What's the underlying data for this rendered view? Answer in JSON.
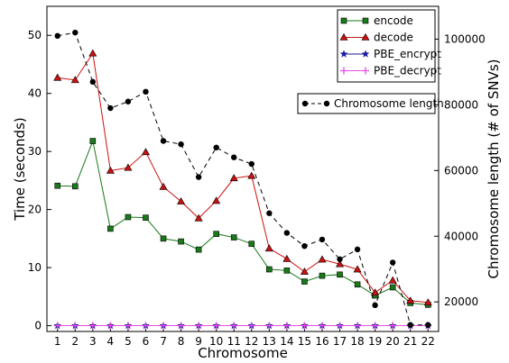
{
  "chart_data": {
    "type": "line",
    "title": "",
    "xlabel": "Chromosome",
    "ylabel": "Time (seconds)",
    "y2label": "Chromosome length (# of SNVs)",
    "categories": [
      "1",
      "2",
      "3",
      "4",
      "5",
      "6",
      "7",
      "8",
      "9",
      "10",
      "11",
      "12",
      "13",
      "14",
      "15",
      "16",
      "17",
      "18",
      "19",
      "20",
      "21",
      "22"
    ],
    "xlim": [
      0.4,
      22.6
    ],
    "ylim": [
      -1,
      55
    ],
    "y2lim": [
      11000,
      110000
    ],
    "yticks": [
      0,
      10,
      20,
      30,
      40,
      50
    ],
    "y2ticks": [
      20000,
      40000,
      60000,
      80000,
      100000
    ],
    "grid": false,
    "series": [
      {
        "name": "encode",
        "axis": "left",
        "color": "#1a7a1a",
        "marker": "square",
        "linestyle": "solid",
        "values": [
          24.1,
          24.0,
          31.8,
          16.7,
          18.7,
          18.6,
          15.0,
          14.5,
          13.1,
          15.8,
          15.2,
          14.1,
          9.7,
          9.5,
          7.6,
          8.6,
          8.8,
          7.1,
          5.2,
          6.6,
          3.9,
          3.6
        ]
      },
      {
        "name": "decode",
        "axis": "left",
        "color": "#cc1111",
        "marker": "triangle",
        "linestyle": "solid",
        "values": [
          42.7,
          42.3,
          46.9,
          26.7,
          27.2,
          29.9,
          23.9,
          21.4,
          18.5,
          21.5,
          25.4,
          25.8,
          13.3,
          11.5,
          9.3,
          11.4,
          10.6,
          9.7,
          5.7,
          7.8,
          4.3,
          4.0
        ]
      },
      {
        "name": "PBE_encrypt",
        "axis": "left",
        "color": "#1a1a9e",
        "marker": "star",
        "linestyle": "solid",
        "values": [
          0,
          0,
          0,
          0,
          0,
          0,
          0,
          0,
          0,
          0,
          0,
          0,
          0,
          0,
          0,
          0,
          0,
          0,
          0,
          0,
          0,
          0
        ]
      },
      {
        "name": "PBE_decrypt",
        "axis": "left",
        "color": "#e64de6",
        "marker": "plus",
        "linestyle": "solid",
        "values": [
          0,
          0,
          0,
          0,
          0,
          0,
          0,
          0,
          0,
          0,
          0,
          0,
          0,
          0,
          0,
          0,
          0,
          0,
          0,
          0,
          0,
          0
        ]
      },
      {
        "name": "Chromosome length",
        "axis": "right",
        "color": "#000000",
        "marker": "circle",
        "linestyle": "dashed",
        "values": [
          101000,
          102000,
          87000,
          79000,
          81000,
          84000,
          69000,
          68000,
          58000,
          67000,
          64000,
          62000,
          47000,
          41000,
          37000,
          39000,
          33000,
          36000,
          19000,
          32000,
          13000,
          13000
        ]
      }
    ],
    "legends": [
      {
        "placement": "top-right",
        "entries": [
          "encode",
          "decode",
          "PBE_encrypt",
          "PBE_decrypt"
        ]
      },
      {
        "placement": "upper-right",
        "entries": [
          "Chromosome length"
        ]
      }
    ]
  }
}
